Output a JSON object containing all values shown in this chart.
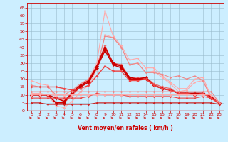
{
  "bg_color": "#cceeff",
  "grid_color": "#99bbcc",
  "xlabel": "Vent moyen/en rafales ( km/h )",
  "xlabel_color": "#cc0000",
  "xticks": [
    0,
    1,
    2,
    3,
    4,
    5,
    6,
    7,
    8,
    9,
    10,
    11,
    12,
    13,
    14,
    15,
    16,
    17,
    18,
    19,
    20,
    21,
    22,
    23
  ],
  "yticks": [
    0,
    5,
    10,
    15,
    20,
    25,
    30,
    35,
    40,
    45,
    50,
    55,
    60,
    65
  ],
  "ylim": [
    0,
    68
  ],
  "xlim": [
    -0.5,
    23.5
  ],
  "series": [
    {
      "color": "#ffaaaa",
      "lw": 0.8,
      "marker": "D",
      "ms": 1.8,
      "x": [
        0,
        1,
        2,
        3,
        4,
        5,
        6,
        7,
        8,
        9,
        10,
        11,
        12,
        13,
        14,
        15,
        16,
        17,
        18,
        19,
        20,
        21,
        22,
        23
      ],
      "y": [
        19,
        17,
        16,
        8,
        7,
        10,
        16,
        20,
        30,
        63,
        47,
        41,
        32,
        33,
        27,
        27,
        22,
        18,
        14,
        14,
        20,
        21,
        9,
        5
      ]
    },
    {
      "color": "#ffaaaa",
      "lw": 0.8,
      "marker": "D",
      "ms": 1.8,
      "x": [
        0,
        1,
        2,
        3,
        4,
        5,
        6,
        7,
        8,
        9,
        10,
        11,
        12,
        13,
        14,
        15,
        16,
        17,
        18,
        19,
        20,
        21,
        22,
        23
      ],
      "y": [
        11,
        11,
        10,
        3,
        2,
        6,
        12,
        16,
        26,
        48,
        46,
        40,
        29,
        30,
        24,
        25,
        21,
        17,
        12,
        13,
        18,
        19,
        8,
        4
      ]
    },
    {
      "color": "#ee8888",
      "lw": 0.8,
      "marker": "D",
      "ms": 1.8,
      "x": [
        0,
        1,
        2,
        3,
        4,
        5,
        6,
        7,
        8,
        9,
        10,
        11,
        12,
        13,
        14,
        15,
        16,
        17,
        18,
        19,
        20,
        21,
        22,
        23
      ],
      "y": [
        16,
        15,
        15,
        10,
        10,
        13,
        17,
        20,
        27,
        47,
        46,
        40,
        29,
        30,
        24,
        24,
        23,
        21,
        22,
        20,
        22,
        19,
        8,
        4
      ]
    },
    {
      "color": "#ee6666",
      "lw": 0.9,
      "marker": "D",
      "ms": 2.0,
      "x": [
        0,
        1,
        2,
        3,
        4,
        5,
        6,
        7,
        8,
        9,
        10,
        11,
        12,
        13,
        14,
        15,
        16,
        17,
        18,
        19,
        20,
        21,
        22,
        23
      ],
      "y": [
        10,
        10,
        10,
        5,
        5,
        10,
        15,
        19,
        28,
        41,
        30,
        29,
        21,
        21,
        21,
        17,
        15,
        14,
        11,
        11,
        11,
        11,
        9,
        5
      ]
    },
    {
      "color": "#cc0000",
      "lw": 1.2,
      "marker": "D",
      "ms": 2.5,
      "x": [
        0,
        1,
        2,
        3,
        4,
        5,
        6,
        7,
        8,
        9,
        10,
        11,
        12,
        13,
        14,
        15,
        16,
        17,
        18,
        19,
        20,
        21,
        22,
        23
      ],
      "y": [
        10,
        10,
        10,
        5,
        5,
        12,
        16,
        19,
        28,
        40,
        30,
        28,
        21,
        20,
        21,
        16,
        14,
        13,
        11,
        11,
        11,
        11,
        9,
        5
      ]
    },
    {
      "color": "#cc0000",
      "lw": 1.2,
      "marker": "D",
      "ms": 2.5,
      "x": [
        0,
        1,
        2,
        3,
        4,
        5,
        6,
        7,
        8,
        9,
        10,
        11,
        12,
        13,
        14,
        15,
        16,
        17,
        18,
        19,
        20,
        21,
        22,
        23
      ],
      "y": [
        10,
        10,
        10,
        8,
        6,
        11,
        15,
        18,
        27,
        38,
        29,
        27,
        20,
        20,
        20,
        16,
        14,
        13,
        11,
        11,
        10,
        11,
        8,
        5
      ]
    },
    {
      "color": "#ee4444",
      "lw": 1.0,
      "marker": "D",
      "ms": 2.0,
      "x": [
        0,
        1,
        2,
        3,
        4,
        5,
        6,
        7,
        8,
        9,
        10,
        11,
        12,
        13,
        14,
        15,
        16,
        17,
        18,
        19,
        20,
        21,
        22,
        23
      ],
      "y": [
        15,
        15,
        15,
        15,
        14,
        13,
        14,
        16,
        22,
        28,
        25,
        25,
        19,
        19,
        20,
        16,
        14,
        13,
        11,
        11,
        10,
        11,
        8,
        5
      ]
    },
    {
      "color": "#ee4444",
      "lw": 0.8,
      "marker": "D",
      "ms": 1.8,
      "x": [
        0,
        1,
        2,
        3,
        4,
        5,
        6,
        7,
        8,
        9,
        10,
        11,
        12,
        13,
        14,
        15,
        16,
        17,
        18,
        19,
        20,
        21,
        22,
        23
      ],
      "y": [
        8,
        8,
        8,
        8,
        8,
        8,
        8,
        9,
        11,
        10,
        10,
        10,
        9,
        9,
        9,
        9,
        9,
        9,
        8,
        8,
        8,
        9,
        8,
        5
      ]
    },
    {
      "color": "#cc2222",
      "lw": 0.8,
      "marker": "D",
      "ms": 1.8,
      "x": [
        0,
        1,
        2,
        3,
        4,
        5,
        6,
        7,
        8,
        9,
        10,
        11,
        12,
        13,
        14,
        15,
        16,
        17,
        18,
        19,
        20,
        21,
        22,
        23
      ],
      "y": [
        5,
        5,
        4,
        4,
        4,
        4,
        4,
        4,
        5,
        5,
        5,
        5,
        5,
        5,
        5,
        5,
        5,
        5,
        5,
        5,
        5,
        5,
        5,
        4
      ]
    },
    {
      "color": "#ffaaaa",
      "lw": 0.8,
      "marker": "D",
      "ms": 1.8,
      "x": [
        0,
        1,
        2,
        3,
        4,
        5,
        6,
        7,
        8,
        9,
        10,
        11,
        12,
        13,
        14,
        15,
        16,
        17,
        18,
        19,
        20,
        21,
        22,
        23
      ],
      "y": [
        10,
        10,
        10,
        10,
        10,
        10,
        10,
        10,
        10,
        10,
        10,
        10,
        10,
        10,
        10,
        10,
        10,
        10,
        10,
        10,
        10,
        10,
        10,
        5
      ]
    },
    {
      "color": "#ee8888",
      "lw": 0.8,
      "marker": "D",
      "ms": 1.8,
      "x": [
        0,
        1,
        2,
        3,
        4,
        5,
        6,
        7,
        8,
        9,
        10,
        11,
        12,
        13,
        14,
        15,
        16,
        17,
        18,
        19,
        20,
        21,
        22,
        23
      ],
      "y": [
        12,
        12,
        12,
        12,
        12,
        12,
        12,
        12,
        12,
        12,
        12,
        12,
        12,
        12,
        12,
        12,
        12,
        12,
        12,
        12,
        12,
        12,
        12,
        5
      ]
    }
  ],
  "tick_color": "#cc0000",
  "axis_color": "#cc0000",
  "spine_color": "#cc0000"
}
